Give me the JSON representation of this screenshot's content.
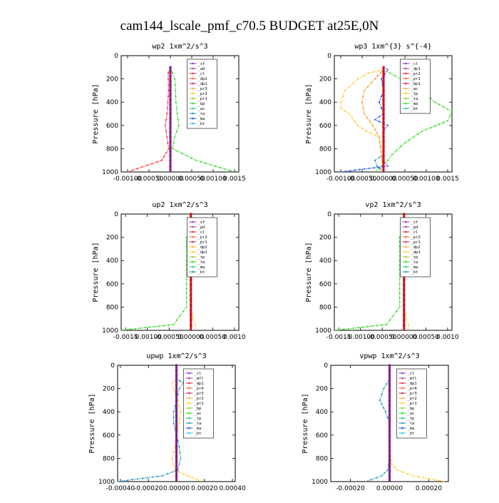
{
  "figure_title": "cam144_lscale_pmf_c70.5  BUDGET at25E,0N",
  "chart_data": [
    {
      "type": "line",
      "title": "wp2  1xm^2/s^3",
      "ylabel": "Pressure [hPa]",
      "xlim": [
        -0.00115,
        0.0016
      ],
      "ylim": [
        1000,
        0
      ],
      "xticks": [
        -0.001,
        -0.0005,
        0.0,
        0.0005,
        0.001,
        0.0015
      ],
      "xtick_labels": [
        "-0.00100",
        "-0.00050",
        "0.00000",
        "0.00050",
        "0.00100",
        "0.0015"
      ],
      "yticks": [
        0,
        200,
        400,
        600,
        800,
        1000
      ],
      "ytick_labels": [
        "0",
        "200",
        "400",
        "600",
        "800",
        "1000"
      ],
      "legend": [
        "_sf",
        "_ad",
        "_cl",
        "_dp2",
        "_dp1",
        "_pr3",
        "_pr2",
        "_pr1",
        "_bp",
        "_ac",
        "_ta",
        "_ma",
        "_bt"
      ],
      "series": [
        {
          "name": "_ac",
          "color": "#33dd22",
          "pressure": [
            100,
            150,
            200,
            300,
            400,
            500,
            600,
            700,
            800,
            900,
            1000
          ],
          "values": [
            0.0,
            5e-05,
            0.0001,
            0.00012,
            0.00013,
            0.00016,
            0.0002,
            0.0001,
            5e-05,
            0.0006,
            0.0015
          ]
        },
        {
          "name": "_pr1",
          "color": "#ff3333",
          "pressure": [
            100,
            150,
            200,
            300,
            400,
            500,
            600,
            700,
            800,
            900,
            1000
          ],
          "values": [
            0.0,
            -5e-05,
            -5e-05,
            -4e-05,
            -6e-05,
            -8e-05,
            -0.00012,
            -8e-05,
            -4e-05,
            -0.0002,
            -0.001
          ]
        },
        {
          "name": "_bp",
          "color": "#2255ee",
          "pressure": [
            100,
            300,
            500,
            700,
            900,
            1000
          ],
          "values": [
            0.0,
            0.0,
            0.0,
            0.0,
            0.0,
            0.0
          ]
        },
        {
          "name": "_bt",
          "color": "#882288",
          "pressure": [
            100,
            300,
            500,
            700,
            900,
            1000
          ],
          "values": [
            0.0,
            0.0,
            0.0,
            0.0,
            0.0,
            0.0
          ]
        }
      ]
    },
    {
      "type": "line",
      "title": "wp3  1xm^{3} s^{-4}",
      "ylabel": "Pressure [hPa]",
      "xlim": [
        -0.00115,
        0.0016
      ],
      "ylim": [
        1000,
        0
      ],
      "xticks": [
        -0.001,
        -0.0005,
        0.0,
        0.0005,
        0.001,
        0.0015
      ],
      "xtick_labels": [
        "-0.00100",
        "-0.00050",
        "0.00000",
        "0.00050",
        "0.00100",
        "0.0015"
      ],
      "yticks": [
        0,
        200,
        400,
        600,
        800,
        1000
      ],
      "ytick_labels": [
        "0",
        "200",
        "400",
        "600",
        "800",
        "1000"
      ],
      "legend": [
        "_cl",
        "_dp1",
        "_pr2",
        "_pr1",
        "_bp1",
        "_ac",
        "_tp",
        "_ta",
        "_ma",
        "_bt"
      ],
      "series": [
        {
          "name": "_ac",
          "color": "#33dd22",
          "pressure": [
            120,
            150,
            200,
            300,
            400,
            480,
            560,
            650,
            750,
            850,
            900,
            1000
          ],
          "values": [
            0.0,
            0.00015,
            0.0004,
            0.0009,
            0.0012,
            0.0016,
            0.0015,
            0.0009,
            0.0005,
            0.0002,
            0.0001,
            -0.0002
          ]
        },
        {
          "name": "_pr2",
          "color": "#ffcc33",
          "pressure": [
            120,
            150,
            200,
            300,
            400,
            450,
            500,
            600,
            650,
            700,
            1000
          ],
          "values": [
            0.0,
            -0.00035,
            -0.0006,
            -0.0009,
            -0.001,
            -0.001,
            -0.0008,
            -0.0006,
            -0.0004,
            -0.0001,
            0.0
          ]
        },
        {
          "name": "_pr1",
          "color": "#ff9922",
          "pressure": [
            120,
            200,
            300,
            400,
            500,
            600,
            700,
            1000
          ],
          "values": [
            0.0,
            -0.0002,
            -0.00045,
            -0.0005,
            -0.00045,
            -0.00025,
            -0.0001,
            0.0
          ]
        },
        {
          "name": "_tp",
          "color": "#2255ee",
          "pressure": [
            100,
            120,
            200,
            300,
            400,
            500,
            550,
            600,
            650,
            900,
            950,
            1000
          ],
          "values": [
            0.0,
            0.0001,
            -5e-05,
            0.0,
            -0.0001,
            0.0,
            -0.0002,
            0.0001,
            0.0,
            0.0,
            0.0001,
            -0.001
          ]
        },
        {
          "name": "_ma",
          "color": "#2299bb",
          "pressure": [
            850,
            900,
            950,
            1000
          ],
          "values": [
            0.0,
            -0.0002,
            -0.00015,
            0.0
          ]
        },
        {
          "name": "_cl",
          "color": "#cc1122",
          "pressure": [
            100,
            300,
            500,
            700,
            900,
            1000
          ],
          "values": [
            0.0,
            0.0,
            0.0,
            0.0,
            0.0,
            0.0
          ]
        }
      ]
    },
    {
      "type": "line",
      "title": "up2  1xm^2/s^3",
      "ylabel": "Pressure [hPa]",
      "xlim": [
        -0.0016,
        0.0011
      ],
      "ylim": [
        1000,
        0
      ],
      "xticks": [
        -0.0015,
        -0.001,
        -0.0005,
        0.0,
        0.0005,
        0.001
      ],
      "xtick_labels": [
        "-0.0015",
        "-0.00100",
        "-0.00050",
        "0.00000",
        "0.00050",
        "0.0010"
      ],
      "yticks": [
        0,
        200,
        400,
        600,
        800,
        1000
      ],
      "ytick_labels": [
        "0",
        "200",
        "400",
        "600",
        "800",
        "1000"
      ],
      "legend": [
        "_sf",
        "_pd",
        "_cl",
        "_pr2",
        "_pr1",
        "_dp2",
        "_dp1",
        "_tp",
        "_ta",
        "_ma",
        "_bt"
      ],
      "series": [
        {
          "name": "_dp1",
          "color": "#33dd22",
          "pressure": [
            120,
            150,
            200,
            400,
            600,
            800,
            950,
            1000
          ],
          "values": [
            0.0,
            -5e-05,
            -0.0001,
            -0.0001,
            -0.0001,
            -0.0001,
            -0.0004,
            -0.0016
          ]
        },
        {
          "name": "_pr1",
          "color": "#ffcc33",
          "pressure": [
            120,
            200,
            400,
            600,
            800,
            900,
            950,
            1000
          ],
          "values": [
            0.0,
            0.0,
            0.0,
            0.0,
            0.0,
            5e-05,
            0.0001,
            0.0001
          ]
        },
        {
          "name": "_tp",
          "color": "#2299bb",
          "pressure": [
            100,
            130,
            200,
            300,
            1000
          ],
          "values": [
            0.0,
            8e-05,
            2e-05,
            0.0,
            0.0
          ]
        },
        {
          "name": "_cl",
          "color": "#cc1122",
          "pressure": [
            0,
            1000
          ],
          "values": [
            0.0,
            0.0
          ]
        }
      ]
    },
    {
      "type": "line",
      "title": "vp2  1xm^2/s^3",
      "ylabel": "Pressure [hPa]",
      "xlim": [
        -0.0016,
        0.0011
      ],
      "ylim": [
        1000,
        0
      ],
      "xticks": [
        -0.0015,
        -0.001,
        -0.0005,
        0.0,
        0.0005,
        0.001
      ],
      "xtick_labels": [
        "-0.0015",
        "-0.00100",
        "-0.00050",
        "0.00000",
        "0.00050",
        "0.0010"
      ],
      "yticks": [
        0,
        200,
        400,
        600,
        800,
        1000
      ],
      "ytick_labels": [
        "0",
        "200",
        "400",
        "600",
        "800",
        "1000"
      ],
      "legend": [
        "_sf",
        "_pd",
        "_cl",
        "_pr2",
        "_pr1",
        "_dp2",
        "_dp1",
        "_tp",
        "_ta",
        "_ma",
        "_bt"
      ],
      "series": [
        {
          "name": "_dp1",
          "color": "#33dd22",
          "pressure": [
            120,
            150,
            200,
            400,
            600,
            800,
            950,
            1000
          ],
          "values": [
            0.0,
            -5e-05,
            -0.0001,
            -0.0001,
            -0.0001,
            -0.0001,
            -0.0004,
            -0.0016
          ]
        },
        {
          "name": "_pr1",
          "color": "#ffcc33",
          "pressure": [
            120,
            200,
            400,
            600,
            800,
            900,
            950,
            1000
          ],
          "values": [
            0.0,
            0.0,
            0.0,
            0.0,
            0.0,
            5e-05,
            0.0001,
            0.0001
          ]
        },
        {
          "name": "_tp",
          "color": "#2299bb",
          "pressure": [
            100,
            130,
            200,
            300,
            1000
          ],
          "values": [
            0.0,
            8e-05,
            2e-05,
            0.0,
            0.0
          ]
        },
        {
          "name": "_cl",
          "color": "#cc1122",
          "pressure": [
            0,
            1000
          ],
          "values": [
            0.0,
            0.0
          ]
        }
      ]
    },
    {
      "type": "line",
      "title": "upwp  1xm^2/s^3",
      "ylabel": "Pressure [hPa]",
      "xlim": [
        -0.00042,
        0.00042
      ],
      "ylim": [
        1000,
        0
      ],
      "xticks": [
        -0.0004,
        -0.0002,
        0.0,
        0.0002,
        0.0004
      ],
      "xtick_labels": [
        "-0.00040",
        "-0.00020",
        "0.00000",
        "0.00020",
        "0.00040"
      ],
      "yticks": [
        0,
        200,
        400,
        600,
        800,
        1000
      ],
      "ytick_labels": [
        "0",
        "200",
        "400",
        "600",
        "800",
        "1000"
      ],
      "legend": [
        "_cl",
        "_mfl",
        "_dp1",
        "_pr4",
        "_pr3",
        "_pr2",
        "_pr1",
        "_bp",
        "_ac",
        "_tp",
        "_ta",
        "_ma",
        "_bt"
      ],
      "series": [
        {
          "name": "_pr1",
          "color": "#ffcc33",
          "pressure": [
            120,
            150,
            200,
            300,
            400,
            500,
            600,
            700,
            800,
            900,
            950,
            1000
          ],
          "values": [
            0.0,
            -3e-05,
            -2e-05,
            1e-05,
            3e-05,
            2e-05,
            0.0,
            -1e-05,
            -3e-05,
            -1e-05,
            8e-05,
            0.00018
          ]
        },
        {
          "name": "_tp",
          "color": "#2299bb",
          "pressure": [
            120,
            150,
            200,
            300,
            400,
            500,
            600,
            700,
            800,
            900,
            950,
            1000
          ],
          "values": [
            0.0,
            5e-05,
            2e-05,
            0.0,
            -2e-05,
            -2e-05,
            0.0,
            2e-05,
            3e-05,
            1e-05,
            -0.0001,
            -0.00042
          ]
        },
        {
          "name": "_bt",
          "color": "#882288",
          "pressure": [
            0,
            1000
          ],
          "values": [
            0.0,
            0.0
          ]
        }
      ]
    },
    {
      "type": "line",
      "title": "vpwp  1xm^2/s^3",
      "ylabel": "Pressure [hPa]",
      "xlim": [
        -0.0003,
        0.0003
      ],
      "ylim": [
        1000,
        0
      ],
      "xticks": [
        -0.0002,
        0.0,
        0.0002
      ],
      "xtick_labels": [
        "-0.00020",
        "0.00000",
        "0.00020"
      ],
      "yticks": [
        0,
        200,
        400,
        600,
        800,
        1000
      ],
      "ytick_labels": [
        "0",
        "200",
        "400",
        "600",
        "800",
        "1000"
      ],
      "legend": [
        "_cl",
        "_mfl",
        "_dp1",
        "_pr4",
        "_pr3",
        "_pr2",
        "_pr1",
        "_bp",
        "_ac",
        "_tp",
        "_ta",
        "_ma",
        "_bt"
      ],
      "series": [
        {
          "name": "_pr1",
          "color": "#ffcc33",
          "pressure": [
            120,
            300,
            500,
            700,
            850,
            900,
            950,
            1000
          ],
          "values": [
            0.0,
            0.0,
            0.0,
            0.0,
            1e-05,
            4e-05,
            0.00012,
            0.00028
          ]
        },
        {
          "name": "_tp",
          "color": "#2299bb",
          "pressure": [
            120,
            200,
            300,
            400,
            500,
            600,
            700,
            800,
            900,
            950,
            1000
          ],
          "values": [
            0.0,
            -3e-05,
            -5e-05,
            -2e-05,
            0.0,
            0.0,
            0.0,
            0.0,
            -1e-05,
            -4e-05,
            -0.00012
          ]
        },
        {
          "name": "_bt",
          "color": "#882288",
          "pressure": [
            0,
            1000
          ],
          "values": [
            0.0,
            0.0
          ]
        }
      ]
    }
  ]
}
